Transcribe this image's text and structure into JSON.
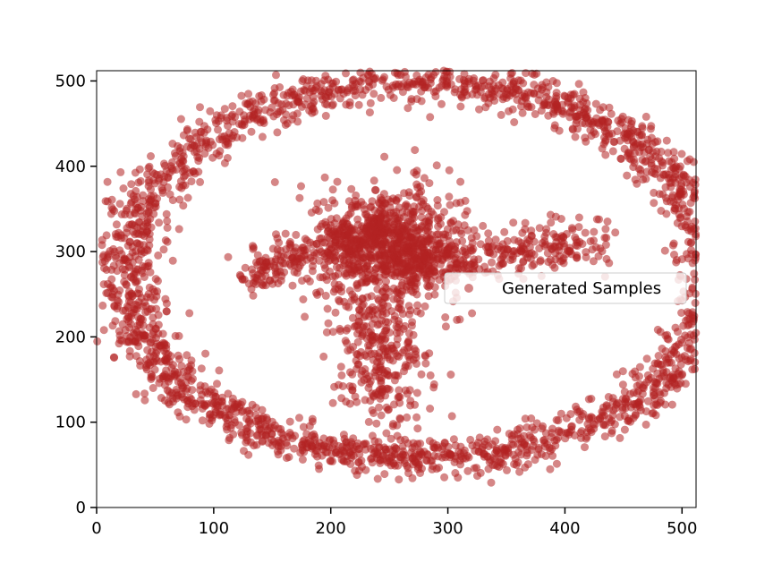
{
  "chart_data": {
    "type": "scatter",
    "title": "",
    "xlabel": "",
    "ylabel": "",
    "xlim": [
      0,
      512
    ],
    "ylim": [
      0,
      512
    ],
    "xticks": [
      0,
      100,
      200,
      300,
      400,
      500
    ],
    "yticks": [
      0,
      100,
      200,
      300,
      400,
      500
    ],
    "grid": false,
    "legend_position": "center-right",
    "series": [
      {
        "name": "Generated Samples",
        "color": "#b22222",
        "opacity": 0.55,
        "approx_count": 4000,
        "distribution": {
          "outer_ring": {
            "center": [
              275,
              275
            ],
            "radius_x": 250,
            "radius_y": 225,
            "spread": 12
          },
          "inner_blob": {
            "center": [
              250,
              290
            ],
            "spread_x": 55,
            "spread_y": 55
          },
          "upper_left_arm": {
            "from": [
              130,
              270
            ],
            "to": [
              245,
              330
            ]
          },
          "right_arm": {
            "from": [
              260,
              290
            ],
            "to": [
              430,
              310
            ]
          },
          "lower_stem": {
            "from": [
              240,
              260
            ],
            "to": [
              250,
              110
            ]
          }
        }
      }
    ]
  }
}
